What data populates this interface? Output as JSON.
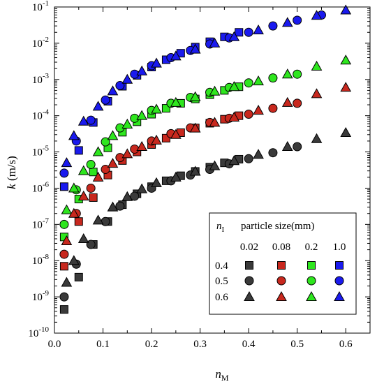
{
  "chart_data": {
    "type": "scatter",
    "xlabel": {
      "main": "n",
      "sub": "M"
    },
    "ylabel": {
      "main": "k",
      "unit": " (m/s)"
    },
    "xlim": [
      0.0,
      0.65
    ],
    "ylim_exp": [
      -10,
      -1
    ],
    "y_scale": "log",
    "x_ticks": [
      "0.0",
      "0.1",
      "0.2",
      "0.3",
      "0.4",
      "0.5",
      "0.6"
    ],
    "y_ticks": [
      {
        "base": "10",
        "exp": "-10"
      },
      {
        "base": "10",
        "exp": "-9"
      },
      {
        "base": "10",
        "exp": "-8"
      },
      {
        "base": "10",
        "exp": "-7"
      },
      {
        "base": "10",
        "exp": "-6"
      },
      {
        "base": "10",
        "exp": "-5"
      },
      {
        "base": "10",
        "exp": "-4"
      },
      {
        "base": "10",
        "exp": "-3"
      },
      {
        "base": "10",
        "exp": "-2"
      },
      {
        "base": "10",
        "exp": "-1"
      }
    ],
    "legend": {
      "position": "bottom-right",
      "row_header": {
        "main": "n",
        "sub": "I"
      },
      "col_header": "particle size(mm)",
      "columns": [
        "0.02",
        "0.08",
        "0.2",
        "1.0"
      ],
      "rows": [
        "0.4",
        "0.5",
        "0.6"
      ]
    },
    "colors": {
      "0.02": "#3a3a3a",
      "0.08": "#c8281e",
      "0.2": "#2ee61e",
      "1.0": "#1a1aee"
    },
    "markers": {
      "0.4": "square",
      "0.5": "circle",
      "0.6": "triangle"
    },
    "series": [
      {
        "size": "1.0",
        "nI": "0.4",
        "x": [
          0.02,
          0.05,
          0.08,
          0.11,
          0.14,
          0.17,
          0.2,
          0.23,
          0.26,
          0.29,
          0.32,
          0.35,
          0.38
        ],
        "y": [
          1.1e-06,
          1.1e-05,
          6.5e-05,
          0.00025,
          0.00065,
          0.0013,
          0.0022,
          0.0035,
          0.0053,
          0.0078,
          0.011,
          0.015,
          0.02
        ]
      },
      {
        "size": "1.0",
        "nI": "0.5",
        "x": [
          0.02,
          0.045,
          0.075,
          0.105,
          0.135,
          0.165,
          0.2,
          0.24,
          0.28,
          0.32,
          0.36,
          0.4,
          0.45,
          0.5,
          0.55
        ],
        "y": [
          2.6e-06,
          2e-05,
          7.5e-05,
          0.00027,
          0.00068,
          0.0014,
          0.0024,
          0.004,
          0.0063,
          0.0095,
          0.014,
          0.02,
          0.03,
          0.043,
          0.06
        ]
      },
      {
        "size": "1.0",
        "nI": "0.6",
        "x": [
          0.025,
          0.04,
          0.06,
          0.09,
          0.12,
          0.15,
          0.18,
          0.21,
          0.25,
          0.29,
          0.33,
          0.37,
          0.42,
          0.48,
          0.54,
          0.6
        ],
        "y": [
          5e-06,
          2.8e-05,
          7e-05,
          0.00018,
          0.00048,
          0.001,
          0.0017,
          0.0028,
          0.0044,
          0.0068,
          0.01,
          0.015,
          0.023,
          0.037,
          0.058,
          0.082
        ]
      },
      {
        "size": "0.2",
        "nI": "0.4",
        "x": [
          0.02,
          0.05,
          0.08,
          0.11,
          0.14,
          0.17,
          0.2,
          0.23,
          0.26,
          0.29,
          0.32,
          0.35,
          0.38
        ],
        "y": [
          4.5e-08,
          5e-07,
          2.8e-06,
          1.3e-05,
          3.5e-05,
          6.8e-05,
          0.00011,
          0.00016,
          0.00022,
          0.00029,
          0.00038,
          0.0005,
          0.00063
        ]
      },
      {
        "size": "0.2",
        "nI": "0.5",
        "x": [
          0.02,
          0.045,
          0.075,
          0.105,
          0.135,
          0.165,
          0.2,
          0.24,
          0.28,
          0.32,
          0.36,
          0.4,
          0.45,
          0.5
        ],
        "y": [
          1e-07,
          9e-07,
          4.5e-06,
          1.9e-05,
          4.6e-05,
          8.5e-05,
          0.00014,
          0.00022,
          0.00032,
          0.00044,
          0.0006,
          0.0008,
          0.0011,
          0.0014
        ]
      },
      {
        "size": "0.2",
        "nI": "0.6",
        "x": [
          0.025,
          0.04,
          0.06,
          0.09,
          0.12,
          0.15,
          0.18,
          0.21,
          0.25,
          0.29,
          0.33,
          0.37,
          0.42,
          0.48,
          0.54,
          0.6
        ],
        "y": [
          2.5e-07,
          1e-06,
          3e-06,
          1e-05,
          2.8e-05,
          5.8e-05,
          0.0001,
          0.00015,
          0.00023,
          0.00033,
          0.00047,
          0.00063,
          0.0009,
          0.0014,
          0.0023,
          0.0034
        ]
      },
      {
        "size": "0.08",
        "nI": "0.4",
        "x": [
          0.02,
          0.05,
          0.08,
          0.11,
          0.14,
          0.17,
          0.2,
          0.23,
          0.26,
          0.29,
          0.32,
          0.35,
          0.38
        ],
        "y": [
          7e-09,
          1.2e-07,
          5.5e-07,
          2.3e-06,
          5.8e-06,
          1e-05,
          1.6e-05,
          2.4e-05,
          3.4e-05,
          4.6e-05,
          6.2e-05,
          8e-05,
          0.0001
        ]
      },
      {
        "size": "0.08",
        "nI": "0.5",
        "x": [
          0.02,
          0.045,
          0.075,
          0.105,
          0.135,
          0.165,
          0.2,
          0.24,
          0.28,
          0.32,
          0.36,
          0.4,
          0.45,
          0.5
        ],
        "y": [
          1.5e-08,
          2e-07,
          1e-06,
          3.3e-06,
          7e-06,
          1.2e-05,
          2e-05,
          3.2e-05,
          4.6e-05,
          6.5e-05,
          8.5e-05,
          0.00011,
          0.00016,
          0.00022
        ]
      },
      {
        "size": "0.08",
        "nI": "0.6",
        "x": [
          0.025,
          0.04,
          0.06,
          0.09,
          0.12,
          0.15,
          0.18,
          0.21,
          0.25,
          0.29,
          0.33,
          0.37,
          0.42,
          0.48,
          0.54,
          0.6
        ],
        "y": [
          3.5e-08,
          2e-07,
          6e-07,
          2e-06,
          4.8e-06,
          8.8e-06,
          1.4e-05,
          2.1e-05,
          3e-05,
          4.5e-05,
          6.5e-05,
          9e-05,
          0.00014,
          0.00023,
          0.0004,
          0.0006
        ]
      },
      {
        "size": "0.02",
        "nI": "0.4",
        "x": [
          0.02,
          0.05,
          0.08,
          0.11,
          0.14,
          0.17,
          0.2,
          0.23,
          0.26,
          0.29,
          0.32,
          0.35,
          0.38
        ],
        "y": [
          4.5e-10,
          3.5e-09,
          2.8e-08,
          1.2e-07,
          3.5e-07,
          7e-07,
          1.1e-06,
          1.6e-06,
          2.2e-06,
          2.9e-06,
          3.8e-06,
          5e-06,
          6.3e-06
        ]
      },
      {
        "size": "0.02",
        "nI": "0.5",
        "x": [
          0.02,
          0.045,
          0.075,
          0.105,
          0.135,
          0.165,
          0.2,
          0.24,
          0.28,
          0.32,
          0.36,
          0.4,
          0.45,
          0.5
        ],
        "y": [
          1e-09,
          8e-09,
          2.8e-08,
          1.2e-07,
          3.2e-07,
          6e-07,
          1e-06,
          1.6e-06,
          2.3e-06,
          3.3e-06,
          4.7e-06,
          6.5e-06,
          9.5e-06,
          1.4e-05
        ]
      },
      {
        "size": "0.02",
        "nI": "0.6",
        "x": [
          0.025,
          0.04,
          0.06,
          0.09,
          0.12,
          0.15,
          0.18,
          0.21,
          0.25,
          0.29,
          0.33,
          0.37,
          0.42,
          0.48,
          0.54,
          0.6
        ],
        "y": [
          2.5e-09,
          1e-08,
          4e-08,
          1.3e-07,
          3e-07,
          5.8e-07,
          9.5e-07,
          1.4e-06,
          2e-06,
          2.9e-06,
          4.1e-06,
          5.7e-06,
          8.5e-06,
          1.4e-05,
          2.3e-05,
          3.4e-05
        ]
      }
    ]
  }
}
